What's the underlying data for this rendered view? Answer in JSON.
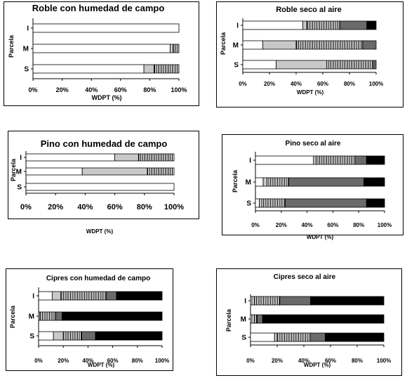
{
  "colors": {
    "white": "#ffffff",
    "light_gray": "#c8c8c8",
    "dark_gray": "#6a6a6a",
    "black": "#000000"
  },
  "chart_data": [
    {
      "type": "bar",
      "orientation": "horizontal",
      "stacked": true,
      "title": "Roble con humedad de campo",
      "xlabel": "WDPT (%)",
      "ylabel": "Parcela",
      "categories": [
        "I",
        "M",
        "S"
      ],
      "xlim": [
        0,
        100
      ],
      "xticks": [
        "0%",
        "20%",
        "40%",
        "60%",
        "80%",
        "100%"
      ],
      "series": [
        {
          "color": "white",
          "pattern": "solid",
          "values": [
            100,
            94,
            76
          ]
        },
        {
          "color": "light_gray",
          "pattern": "solid",
          "values": [
            0,
            2,
            7
          ]
        },
        {
          "color": "white",
          "pattern": "vertical-stripes",
          "values": [
            0,
            4,
            17
          ]
        },
        {
          "color": "dark_gray",
          "pattern": "solid",
          "values": [
            0,
            0,
            0
          ]
        },
        {
          "color": "black",
          "pattern": "solid",
          "values": [
            0,
            0,
            0
          ]
        }
      ]
    },
    {
      "type": "bar",
      "orientation": "horizontal",
      "stacked": true,
      "title": "Roble seco al aire",
      "xlabel": "WDPT (%)",
      "ylabel": "Parcela",
      "categories": [
        "I",
        "M",
        "S"
      ],
      "xlim": [
        0,
        100
      ],
      "xticks": [
        "0%",
        "20%",
        "40%",
        "60%",
        "80%",
        "100%"
      ],
      "series": [
        {
          "color": "white",
          "pattern": "solid",
          "values": [
            45,
            15,
            25
          ]
        },
        {
          "color": "light_gray",
          "pattern": "solid",
          "values": [
            3,
            25,
            38
          ]
        },
        {
          "color": "white",
          "pattern": "vertical-stripes",
          "values": [
            25,
            50,
            35
          ]
        },
        {
          "color": "dark_gray",
          "pattern": "solid",
          "values": [
            20,
            10,
            2
          ]
        },
        {
          "color": "black",
          "pattern": "solid",
          "values": [
            7,
            0,
            0
          ]
        }
      ]
    },
    {
      "type": "bar",
      "orientation": "horizontal",
      "stacked": true,
      "title": "Pino con humedad de campo",
      "xlabel": "WDPT (%)",
      "ylabel": "Parcela",
      "categories": [
        "I",
        "M",
        "S"
      ],
      "xlim": [
        0,
        100
      ],
      "xticks": [
        "0%",
        "20%",
        "40%",
        "60%",
        "80%",
        "100%"
      ],
      "series": [
        {
          "color": "white",
          "pattern": "solid",
          "values": [
            60,
            38,
            100
          ]
        },
        {
          "color": "light_gray",
          "pattern": "solid",
          "values": [
            16,
            44,
            0
          ]
        },
        {
          "color": "white",
          "pattern": "vertical-stripes",
          "values": [
            24,
            18,
            0
          ]
        },
        {
          "color": "dark_gray",
          "pattern": "solid",
          "values": [
            0,
            0,
            0
          ]
        },
        {
          "color": "black",
          "pattern": "solid",
          "values": [
            0,
            0,
            0
          ]
        }
      ]
    },
    {
      "type": "bar",
      "orientation": "horizontal",
      "stacked": true,
      "title": "Pino seco al aire",
      "xlabel": "WDPT (%)",
      "ylabel": "Parcela",
      "categories": [
        "I",
        "M",
        "S"
      ],
      "xlim": [
        0,
        100
      ],
      "xticks": [
        "0%",
        "20%",
        "40%",
        "60%",
        "80%",
        "100%"
      ],
      "series": [
        {
          "color": "white",
          "pattern": "solid",
          "values": [
            45,
            6,
            3
          ]
        },
        {
          "color": "light_gray",
          "pattern": "solid",
          "values": [
            2,
            3,
            2
          ]
        },
        {
          "color": "white",
          "pattern": "vertical-stripes",
          "values": [
            30,
            17,
            18
          ]
        },
        {
          "color": "dark_gray",
          "pattern": "solid",
          "values": [
            9,
            58,
            63
          ]
        },
        {
          "color": "black",
          "pattern": "solid",
          "values": [
            14,
            16,
            14
          ]
        }
      ]
    },
    {
      "type": "bar",
      "orientation": "horizontal",
      "stacked": true,
      "title": "Cipres con humedad de campo",
      "xlabel": "WDPT (%)",
      "ylabel": "Parcela",
      "categories": [
        "I",
        "M",
        "S"
      ],
      "xlim": [
        0,
        100
      ],
      "xticks": [
        "0%",
        "20%",
        "40%",
        "60%",
        "80%",
        "100%"
      ],
      "series": [
        {
          "color": "white",
          "pattern": "solid",
          "values": [
            11,
            1,
            12
          ]
        },
        {
          "color": "light_gray",
          "pattern": "solid",
          "values": [
            7,
            0,
            8
          ]
        },
        {
          "color": "white",
          "pattern": "vertical-stripes",
          "values": [
            37,
            13,
            15
          ]
        },
        {
          "color": "dark_gray",
          "pattern": "solid",
          "values": [
            8,
            5,
            11
          ]
        },
        {
          "color": "black",
          "pattern": "solid",
          "values": [
            37,
            81,
            54
          ]
        }
      ]
    },
    {
      "type": "bar",
      "orientation": "horizontal",
      "stacked": true,
      "title": "Cipres seco al aire",
      "xlabel": "WDPT (%)",
      "ylabel": "Parcela",
      "categories": [
        "I",
        "M",
        "S"
      ],
      "xlim": [
        0,
        100
      ],
      "xticks": [
        "0%",
        "20%",
        "40%",
        "60%",
        "80%",
        "100%"
      ],
      "series": [
        {
          "color": "white",
          "pattern": "solid",
          "values": [
            1,
            1,
            18
          ]
        },
        {
          "color": "light_gray",
          "pattern": "solid",
          "values": [
            2,
            2,
            2
          ]
        },
        {
          "color": "white",
          "pattern": "vertical-stripes",
          "values": [
            19,
            2,
            25
          ]
        },
        {
          "color": "dark_gray",
          "pattern": "solid",
          "values": [
            23,
            4,
            11
          ]
        },
        {
          "color": "black",
          "pattern": "solid",
          "values": [
            55,
            91,
            44
          ]
        }
      ]
    }
  ]
}
